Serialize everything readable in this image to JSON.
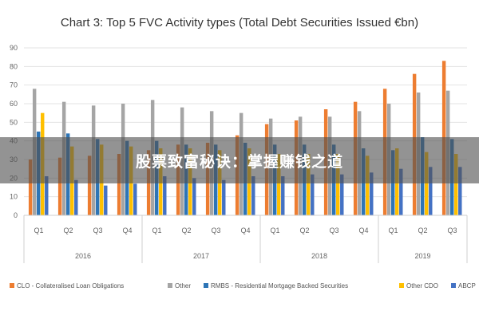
{
  "chart_data": {
    "type": "bar",
    "title": "Chart 3: Top 5 FVC Activity types (Total Debt Securities Issued €bn)",
    "xlabel": "",
    "ylabel": "",
    "ylim": [
      0,
      90
    ],
    "yticks": [
      0,
      10,
      20,
      30,
      40,
      50,
      60,
      70,
      80,
      90
    ],
    "grid": true,
    "legend_position": "bottom",
    "categories": [
      "Q1",
      "Q2",
      "Q3",
      "Q4",
      "Q1",
      "Q2",
      "Q3",
      "Q4",
      "Q1",
      "Q2",
      "Q3",
      "Q4",
      "Q1",
      "Q2",
      "Q3"
    ],
    "year_groups": [
      {
        "label": "2016",
        "count": 4
      },
      {
        "label": "2017",
        "count": 4
      },
      {
        "label": "2018",
        "count": 4
      },
      {
        "label": "2019",
        "count": 3
      }
    ],
    "series": [
      {
        "name": "CLO - Collateralised Loan Obligations",
        "color": "#ed7d31",
        "values": [
          30,
          31,
          32,
          33,
          35,
          38,
          39,
          43,
          49,
          51,
          57,
          61,
          68,
          76,
          83
        ]
      },
      {
        "name": "Other",
        "color": "#a5a5a5",
        "values": [
          68,
          61,
          59,
          60,
          62,
          58,
          56,
          55,
          52,
          53,
          53,
          56,
          60,
          66,
          67
        ]
      },
      {
        "name": "RMBS - Residential Mortgage Backed Securities",
        "color": "#2e75b6",
        "values": [
          45,
          44,
          41,
          40,
          40,
          38,
          38,
          39,
          38,
          38,
          38,
          36,
          35,
          42,
          41
        ]
      },
      {
        "name": "Other CDO",
        "color": "#ffc000",
        "values": [
          55,
          37,
          38,
          37,
          36,
          36,
          35,
          36,
          33,
          33,
          33,
          32,
          36,
          34,
          33
        ]
      },
      {
        "name": "ABCP",
        "color": "#4472c4",
        "values": [
          21,
          19,
          16,
          17,
          21,
          20,
          19,
          21,
          21,
          22,
          22,
          23,
          25,
          26,
          26
        ]
      }
    ]
  },
  "overlay": {
    "text": "股票致富秘诀：掌握赚钱之道"
  }
}
